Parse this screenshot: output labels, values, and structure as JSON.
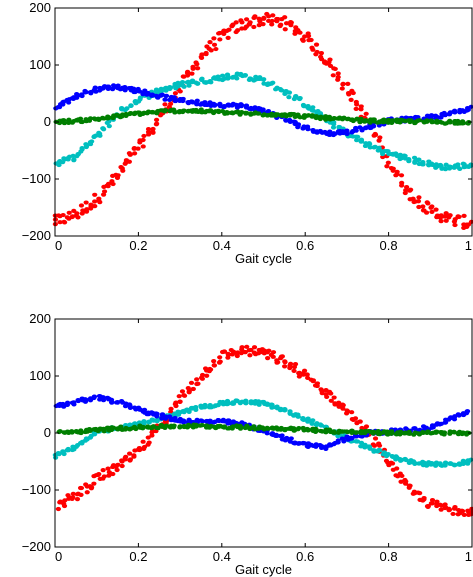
{
  "chart_data": [
    {
      "type": "scatter",
      "title": "",
      "xlabel": "Gait cycle",
      "ylabel": "",
      "xlim": [
        0,
        1
      ],
      "ylim": [
        -200,
        200
      ],
      "xticks": [
        "0",
        "0.2",
        "0.4",
        "0.6",
        "0.8",
        "1"
      ],
      "yticks": [
        "200",
        "100",
        "0",
        "−100",
        "−200"
      ],
      "grid": false,
      "series": [
        {
          "color": "#ff0000",
          "x": [
            0,
            0.05,
            0.1,
            0.15,
            0.2,
            0.25,
            0.3,
            0.35,
            0.4,
            0.45,
            0.5,
            0.55,
            0.6,
            0.65,
            0.7,
            0.75,
            0.8,
            0.85,
            0.9,
            0.95,
            1
          ],
          "y": [
            -175,
            -162,
            -135,
            -95,
            -45,
            5,
            60,
            115,
            150,
            172,
            180,
            175,
            150,
            110,
            60,
            0,
            -70,
            -125,
            -155,
            -172,
            -178
          ]
        },
        {
          "color": "#00bfbf",
          "x": [
            0,
            0.05,
            0.1,
            0.15,
            0.2,
            0.25,
            0.3,
            0.35,
            0.4,
            0.45,
            0.5,
            0.55,
            0.6,
            0.65,
            0.7,
            0.75,
            0.8,
            0.85,
            0.9,
            0.95,
            1
          ],
          "y": [
            -75,
            -60,
            -25,
            15,
            40,
            55,
            65,
            72,
            78,
            82,
            72,
            55,
            30,
            5,
            -20,
            -40,
            -55,
            -65,
            -75,
            -80,
            -75
          ]
        },
        {
          "color": "#0000ff",
          "x": [
            0,
            0.05,
            0.1,
            0.15,
            0.2,
            0.25,
            0.3,
            0.35,
            0.4,
            0.45,
            0.5,
            0.55,
            0.6,
            0.65,
            0.7,
            0.75,
            0.8,
            0.85,
            0.9,
            0.95,
            1
          ],
          "y": [
            25,
            45,
            58,
            62,
            55,
            45,
            38,
            33,
            30,
            28,
            20,
            5,
            -10,
            -20,
            -18,
            -8,
            2,
            5,
            8,
            15,
            25
          ]
        },
        {
          "color": "#007f00",
          "x": [
            0,
            0.05,
            0.1,
            0.15,
            0.2,
            0.25,
            0.3,
            0.35,
            0.4,
            0.45,
            0.5,
            0.55,
            0.6,
            0.65,
            0.7,
            0.75,
            0.8,
            0.85,
            0.9,
            0.95,
            1
          ],
          "y": [
            0,
            2,
            5,
            10,
            15,
            18,
            20,
            19,
            17,
            15,
            14,
            13,
            10,
            7,
            4,
            2,
            1,
            1,
            0,
            0,
            0
          ]
        }
      ]
    },
    {
      "type": "scatter",
      "title": "",
      "xlabel": "Gait cycle",
      "ylabel": "",
      "xlim": [
        0,
        1
      ],
      "ylim": [
        -200,
        200
      ],
      "xticks": [
        "0",
        "0.2",
        "0.4",
        "0.6",
        "0.8",
        "1"
      ],
      "yticks": [
        "200",
        "100",
        "0",
        "−100",
        "−200"
      ],
      "grid": false,
      "series": [
        {
          "color": "#ff0000",
          "x": [
            0,
            0.05,
            0.1,
            0.15,
            0.2,
            0.25,
            0.3,
            0.35,
            0.4,
            0.45,
            0.5,
            0.55,
            0.6,
            0.65,
            0.7,
            0.75,
            0.8,
            0.85,
            0.9,
            0.95,
            1
          ],
          "y": [
            -130,
            -110,
            -80,
            -60,
            -35,
            10,
            60,
            100,
            135,
            145,
            140,
            125,
            100,
            70,
            40,
            0,
            -50,
            -100,
            -125,
            -135,
            -135
          ]
        },
        {
          "color": "#00bfbf",
          "x": [
            0,
            0.05,
            0.1,
            0.15,
            0.2,
            0.25,
            0.3,
            0.35,
            0.4,
            0.45,
            0.5,
            0.55,
            0.6,
            0.65,
            0.7,
            0.75,
            0.8,
            0.85,
            0.9,
            0.95,
            1
          ],
          "y": [
            -40,
            -25,
            0,
            10,
            15,
            25,
            35,
            45,
            52,
            55,
            52,
            40,
            25,
            8,
            -10,
            -25,
            -40,
            -50,
            -55,
            -55,
            -50
          ]
        },
        {
          "color": "#0000ff",
          "x": [
            0,
            0.05,
            0.1,
            0.15,
            0.2,
            0.25,
            0.3,
            0.35,
            0.4,
            0.45,
            0.5,
            0.55,
            0.6,
            0.65,
            0.7,
            0.75,
            0.8,
            0.85,
            0.9,
            0.95,
            1
          ],
          "y": [
            45,
            55,
            62,
            55,
            42,
            30,
            22,
            20,
            20,
            15,
            5,
            -10,
            -20,
            -25,
            -10,
            0,
            2,
            5,
            10,
            25,
            40
          ]
        },
        {
          "color": "#007f00",
          "x": [
            0,
            0.05,
            0.1,
            0.15,
            0.2,
            0.25,
            0.3,
            0.35,
            0.4,
            0.45,
            0.5,
            0.55,
            0.6,
            0.65,
            0.7,
            0.75,
            0.8,
            0.85,
            0.9,
            0.95,
            1
          ],
          "y": [
            0,
            2,
            5,
            8,
            10,
            11,
            12,
            12,
            11,
            10,
            9,
            8,
            6,
            4,
            2,
            1,
            0,
            0,
            0,
            0,
            0
          ]
        }
      ]
    }
  ]
}
